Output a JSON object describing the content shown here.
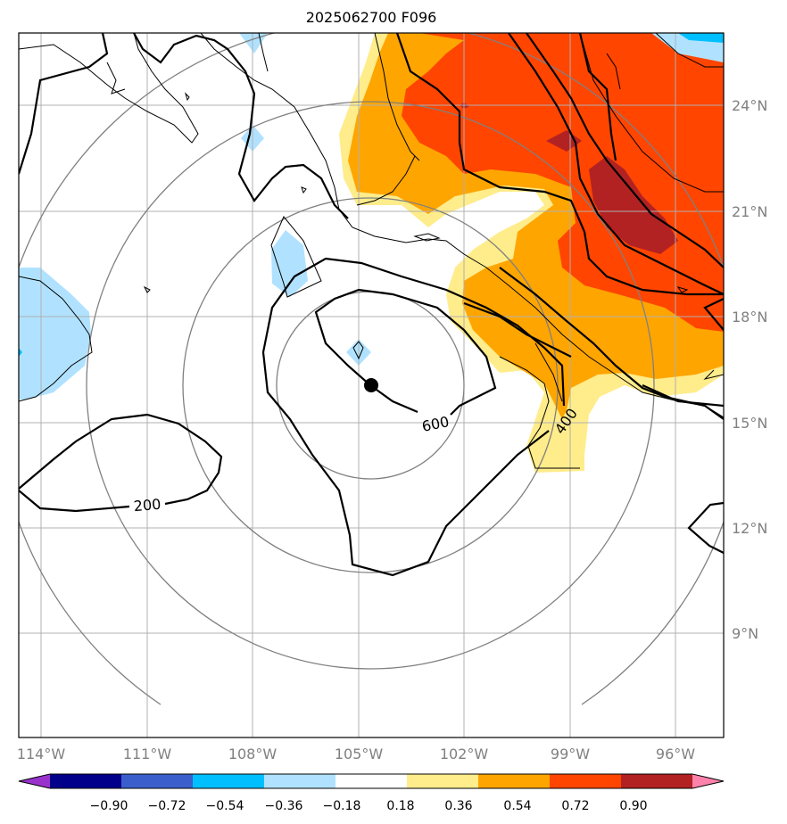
{
  "title": "2025062700 F096",
  "map": {
    "lon_ticks": [
      "114°W",
      "111°W",
      "108°W",
      "105°W",
      "102°W",
      "99°W",
      "96°W"
    ],
    "lat_ticks": [
      "24°N",
      "21°N",
      "18°N",
      "15°N",
      "12°N",
      "9°N"
    ],
    "gridlines": true,
    "center_marker": "storm-center-dot",
    "range_rings": 4
  },
  "contours": {
    "labels": [
      "600",
      "400",
      "200"
    ]
  },
  "colorbar": {
    "ticks": [
      "−0.90",
      "−0.72",
      "−0.54",
      "−0.36",
      "−0.18",
      "0.18",
      "0.36",
      "0.54",
      "0.72",
      "0.90"
    ],
    "colors": [
      "#9932cc",
      "#00008b",
      "#3a5fcd",
      "#00bfff",
      "#b0e2ff",
      "#ffffff",
      "#ffec8b",
      "#ffa500",
      "#ff4500",
      "#b22222",
      "#ff82ab"
    ],
    "extend": "both"
  }
}
